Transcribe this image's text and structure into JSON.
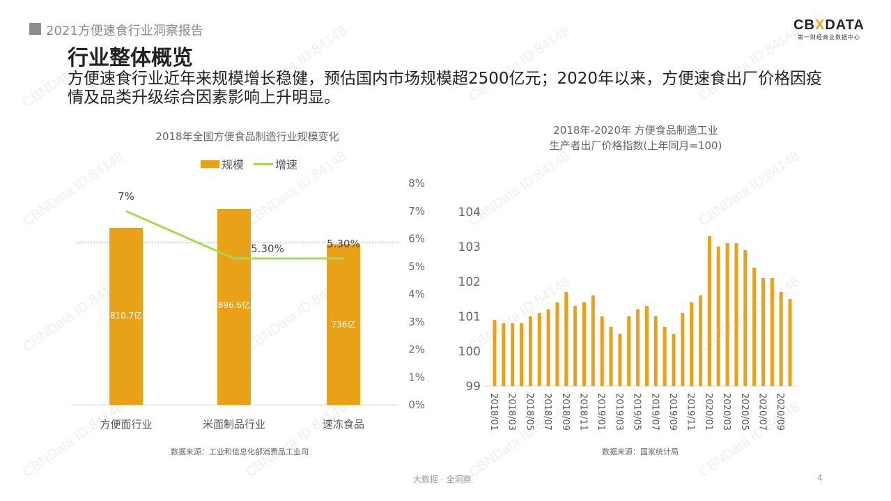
{
  "header": {
    "report_title": "2021方便速食行业洞察报告",
    "logo_main_left": "CB",
    "logo_main_x": "X",
    "logo_main_right": "DATA",
    "logo_sub": "第一财经商业数据中心"
  },
  "page": {
    "title": "行业整体概览",
    "subtitle": "方便速食行业近年来规模增长稳健，预估国内市场规模超2500亿元；2020年以来，方便速食出厂价格因疫情及品类升级综合因素影响上升明显。"
  },
  "left_chart": {
    "title": "2018年全国方便食品制造行业规模变化",
    "legend_bar": "规模",
    "legend_line": "增速",
    "source": "数据来源：工业和信息化部消费品工业司"
  },
  "right_chart": {
    "title_line1": "2018年-2020年 方便食品制造工业",
    "title_line2": "生产者出厂价格指数(上年同月=100)",
    "source": "数据来源：国家统计局"
  },
  "footer": {
    "slogan": "大数据 · 全洞察",
    "page_number": "4"
  },
  "watermark": "CBNData ID:84148",
  "colors": {
    "bar": "#e9a117",
    "line": "#a6d94f",
    "axis_text": "#666666"
  },
  "chart_data": [
    {
      "type": "bar",
      "title": "2018年全国方便食品制造行业规模变化",
      "categories": [
        "方便面行业",
        "米面制品行业",
        "速冻食品"
      ],
      "series": [
        {
          "name": "规模",
          "type": "bar",
          "values": [
            810.7,
            896.6,
            736
          ],
          "labels": [
            "810.7亿",
            "896.6亿",
            "736亿"
          ],
          "unit": "亿元"
        },
        {
          "name": "增速",
          "type": "line",
          "axis": "right",
          "values": [
            7.0,
            5.3,
            5.3
          ],
          "labels": [
            "7%",
            "5.30%",
            "5.30%"
          ],
          "unit": "%"
        }
      ],
      "y_right_ticks": [
        "0%",
        "1%",
        "2%",
        "3%",
        "4%",
        "5%",
        "6%",
        "7%",
        "8%"
      ],
      "y_right_range": [
        0,
        8
      ],
      "reference_line": "dashed at ~6%",
      "legend_position": "top",
      "grid": false
    },
    {
      "type": "bar",
      "title": "2018年-2020年 方便食品制造工业 生产者出厂价格指数(上年同月=100)",
      "xlabel": "",
      "ylabel": "",
      "ylim": [
        99,
        104
      ],
      "y_ticks": [
        99,
        100,
        101,
        102,
        103,
        104
      ],
      "x_tick_labels": [
        "2018/01",
        "2018/03",
        "2018/05",
        "2018/07",
        "2018/09",
        "2018/11",
        "2019/01",
        "2019/03",
        "2019/05",
        "2019/07",
        "2019/09",
        "2019/11",
        "2020/01",
        "2020/03",
        "2020/05",
        "2020/07",
        "2020/09"
      ],
      "x": [
        "2018/01",
        "2018/02",
        "2018/03",
        "2018/04",
        "2018/05",
        "2018/06",
        "2018/07",
        "2018/08",
        "2018/09",
        "2018/10",
        "2018/11",
        "2018/12",
        "2019/01",
        "2019/02",
        "2019/03",
        "2019/04",
        "2019/05",
        "2019/06",
        "2019/07",
        "2019/08",
        "2019/09",
        "2019/10",
        "2019/11",
        "2019/12",
        "2020/01",
        "2020/02",
        "2020/03",
        "2020/04",
        "2020/05",
        "2020/06",
        "2020/07",
        "2020/08",
        "2020/09",
        "2020/10"
      ],
      "values": [
        100.9,
        100.8,
        100.8,
        100.8,
        101.0,
        101.1,
        101.2,
        101.4,
        101.7,
        101.3,
        101.4,
        101.6,
        101.0,
        100.7,
        100.5,
        101.0,
        101.2,
        101.3,
        101.0,
        100.7,
        100.5,
        101.1,
        101.4,
        101.6,
        103.3,
        103.0,
        103.1,
        103.1,
        102.9,
        102.4,
        102.1,
        102.1,
        101.7,
        101.5
      ],
      "grid": false
    }
  ]
}
